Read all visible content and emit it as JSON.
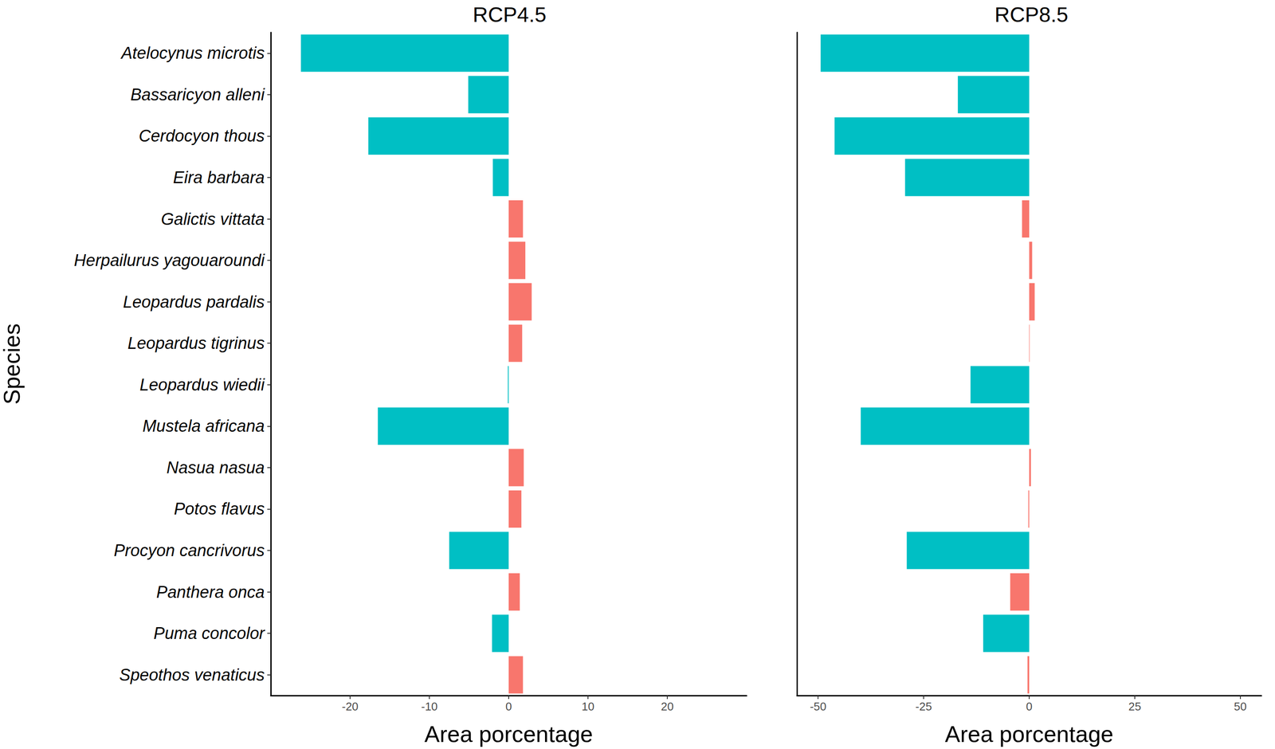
{
  "chart_data": [
    {
      "type": "bar",
      "orientation": "horizontal",
      "title": "RCP4.5",
      "x_label": "Area porcentage",
      "y_label": "Species",
      "categories": [
        "Atelocynus microtis",
        "Bassaricyon alleni",
        "Cerdocyon thous",
        "Eira barbara",
        "Galictis vittata",
        "Herpailurus yagouaroundi",
        "Leopardus pardalis",
        "Leopardus tigrinus",
        "Leopardus wiedii",
        "Mustela africana",
        "Nasua nasua",
        "Potos flavus",
        "Procyon cancrivorus",
        "Panthera onca",
        "Puma concolor",
        "Speothos venaticus"
      ],
      "values": [
        -26.2,
        -5.1,
        -17.7,
        -2.0,
        1.8,
        2.1,
        2.9,
        1.7,
        -0.1,
        -16.5,
        1.9,
        1.6,
        -7.5,
        1.4,
        -2.1,
        1.8
      ],
      "colors": [
        "#00BFC4",
        "#00BFC4",
        "#00BFC4",
        "#00BFC4",
        "#F8766D",
        "#F8766D",
        "#F8766D",
        "#F8766D",
        "#00BFC4",
        "#00BFC4",
        "#F8766D",
        "#F8766D",
        "#00BFC4",
        "#F8766D",
        "#00BFC4",
        "#F8766D"
      ],
      "xlim": [
        -30,
        30
      ],
      "xticks": [
        -20,
        -10,
        0,
        10,
        20
      ],
      "grid": false
    },
    {
      "type": "bar",
      "orientation": "horizontal",
      "title": "RCP8.5",
      "x_label": "Area porcentage",
      "tick_labels": "x",
      "categories": [
        "Atelocynus microtis",
        "Bassaricyon alleni",
        "Cerdocyon thous",
        "Eira barbara",
        "Galictis vittata",
        "Herpailurus yagouaroundi",
        "Leopardus pardalis",
        "Leopardus tigrinus",
        "Leopardus wiedii",
        "Mustela africana",
        "Nasua nasua",
        "Potos flavus",
        "Procyon cancrivorus",
        "Panthera onca",
        "Puma concolor",
        "Speothos venaticus"
      ],
      "values": [
        -49.4,
        -16.9,
        -46.1,
        -29.4,
        -1.7,
        0.7,
        1.3,
        0.1,
        -13.9,
        -39.9,
        0.4,
        -0.2,
        -29.0,
        -4.5,
        -10.9,
        -0.4
      ],
      "colors": [
        "#00BFC4",
        "#00BFC4",
        "#00BFC4",
        "#00BFC4",
        "#F8766D",
        "#F8766D",
        "#F8766D",
        "#F8766D",
        "#00BFC4",
        "#00BFC4",
        "#F8766D",
        "#F8766D",
        "#00BFC4",
        "#F8766D",
        "#00BFC4",
        "#F8766D"
      ],
      "xlim": [
        -55,
        55
      ],
      "xticks": [
        -50,
        -25,
        0,
        25,
        50
      ],
      "grid": false
    }
  ]
}
